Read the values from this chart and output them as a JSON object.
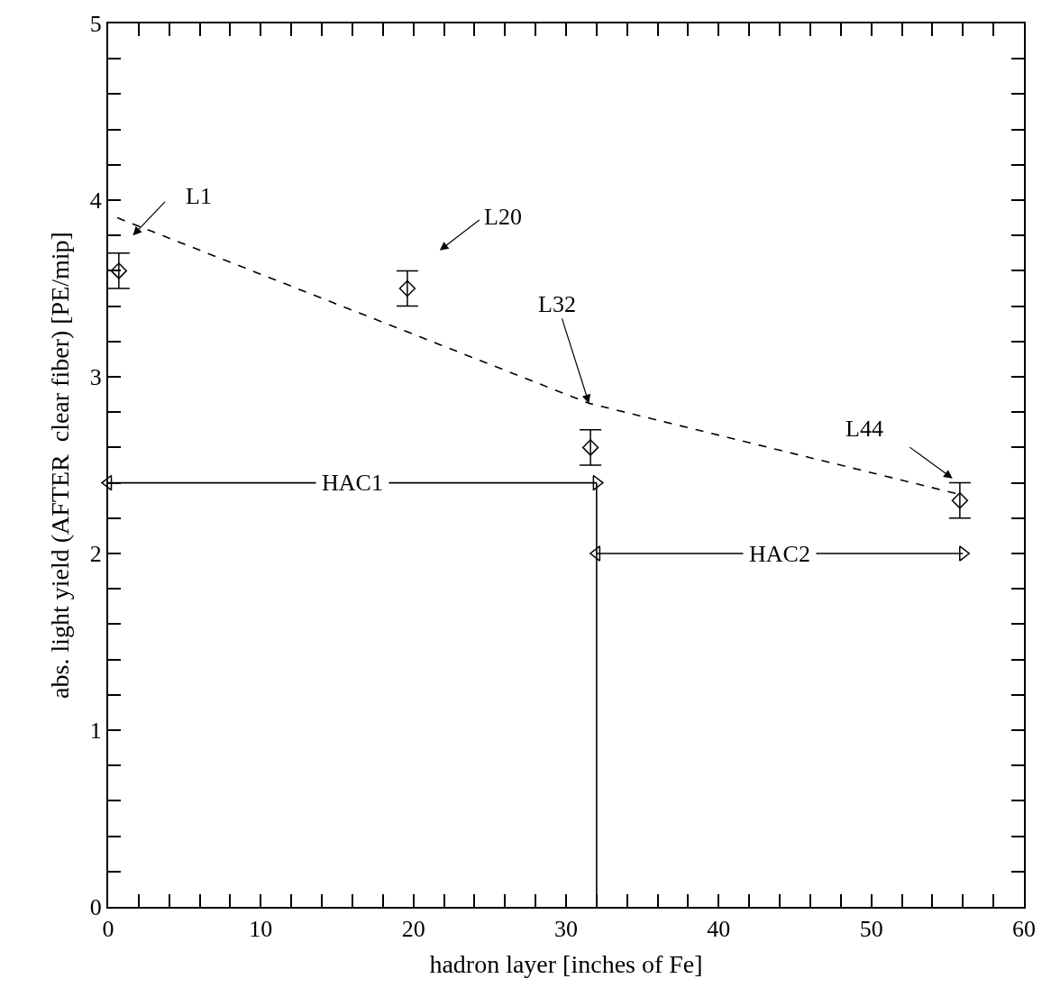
{
  "chart_data": {
    "type": "scatter",
    "xlabel": "hadron layer [inches of Fe]",
    "ylabel": "abs. light yield (AFTER  clear fiber) [PE/mip]",
    "marker": "diamond",
    "xlim": [
      0,
      60
    ],
    "ylim": [
      0,
      5
    ],
    "xticks": [
      0,
      {
        "value": 2,
        "label": null
      },
      {
        "value": 4,
        "label": null
      },
      {
        "value": 6,
        "label": null
      },
      {
        "value": 8,
        "label": null
      },
      10,
      {
        "value": 12,
        "label": null
      },
      {
        "value": 14,
        "label": null
      },
      {
        "value": 16,
        "label": null
      },
      {
        "value": 18,
        "label": null
      },
      20,
      {
        "value": 22,
        "label": null
      },
      {
        "value": 24,
        "label": null
      },
      {
        "value": 26,
        "label": null
      },
      {
        "value": 28,
        "label": null
      },
      30,
      {
        "value": 32,
        "label": null
      },
      {
        "value": 34,
        "label": null
      },
      {
        "value": 36,
        "label": null
      },
      {
        "value": 38,
        "label": null
      },
      40,
      {
        "value": 42,
        "label": null
      },
      {
        "value": 44,
        "label": null
      },
      {
        "value": 46,
        "label": null
      },
      {
        "value": 48,
        "label": null
      },
      50,
      {
        "value": 52,
        "label": null
      },
      {
        "value": 54,
        "label": null
      },
      {
        "value": 56,
        "label": null
      },
      {
        "value": 58,
        "label": null
      },
      60
    ],
    "yticks": [
      0,
      {
        "value": 0.2,
        "label": null
      },
      {
        "value": 0.4,
        "label": null
      },
      {
        "value": 0.6,
        "label": null
      },
      {
        "value": 0.8,
        "label": null
      },
      1,
      {
        "value": 1.2,
        "label": null
      },
      {
        "value": 1.4,
        "label": null
      },
      {
        "value": 1.6,
        "label": null
      },
      {
        "value": 1.8,
        "label": null
      },
      2,
      {
        "value": 2.2,
        "label": null
      },
      {
        "value": 2.4,
        "label": null
      },
      {
        "value": 2.6,
        "label": null
      },
      {
        "value": 2.8,
        "label": null
      },
      3,
      {
        "value": 3.2,
        "label": null
      },
      {
        "value": 3.4,
        "label": null
      },
      {
        "value": 3.6,
        "label": null
      },
      {
        "value": 3.8,
        "label": null
      },
      4,
      {
        "value": 4.2,
        "label": null
      },
      {
        "value": 4.4,
        "label": null
      },
      {
        "value": 4.6,
        "label": null
      },
      {
        "value": 4.8,
        "label": null
      },
      5
    ],
    "series": [
      {
        "color": "#000000",
        "x": [
          0.7,
          19.6,
          31.6,
          55.8
        ],
        "values": [
          3.6,
          3.5,
          2.6,
          2.3
        ],
        "errors": [
          0.1,
          0.1,
          0.1,
          0.1
        ]
      },
      {
        "type": "line",
        "color": "#000000",
        "line_style": "dashed",
        "marker": "none",
        "x": [
          0.6,
          31.5,
          56
        ],
        "values": [
          3.9,
          2.85,
          2.33
        ]
      },
      {
        "type": "line",
        "name": "HAC1",
        "color": "#000000",
        "line_style": "solid",
        "marker": "triangle",
        "x": [
          0,
          32
        ],
        "values": [
          2.4,
          2.4
        ]
      },
      {
        "type": "line",
        "name": "HAC2",
        "color": "#000000",
        "line_style": "solid",
        "marker": "triangle",
        "x": [
          32,
          56
        ],
        "values": [
          2.0,
          2.0
        ]
      }
    ],
    "ref_lines": [
      {
        "axis": "x",
        "value": 32,
        "color": "#000000",
        "line_style": "solid"
      }
    ],
    "annotations": [
      "L1",
      "L20",
      {
        "text": "L32",
        "x": 31.5,
        "y": 2.85
      },
      "L44"
    ]
  }
}
